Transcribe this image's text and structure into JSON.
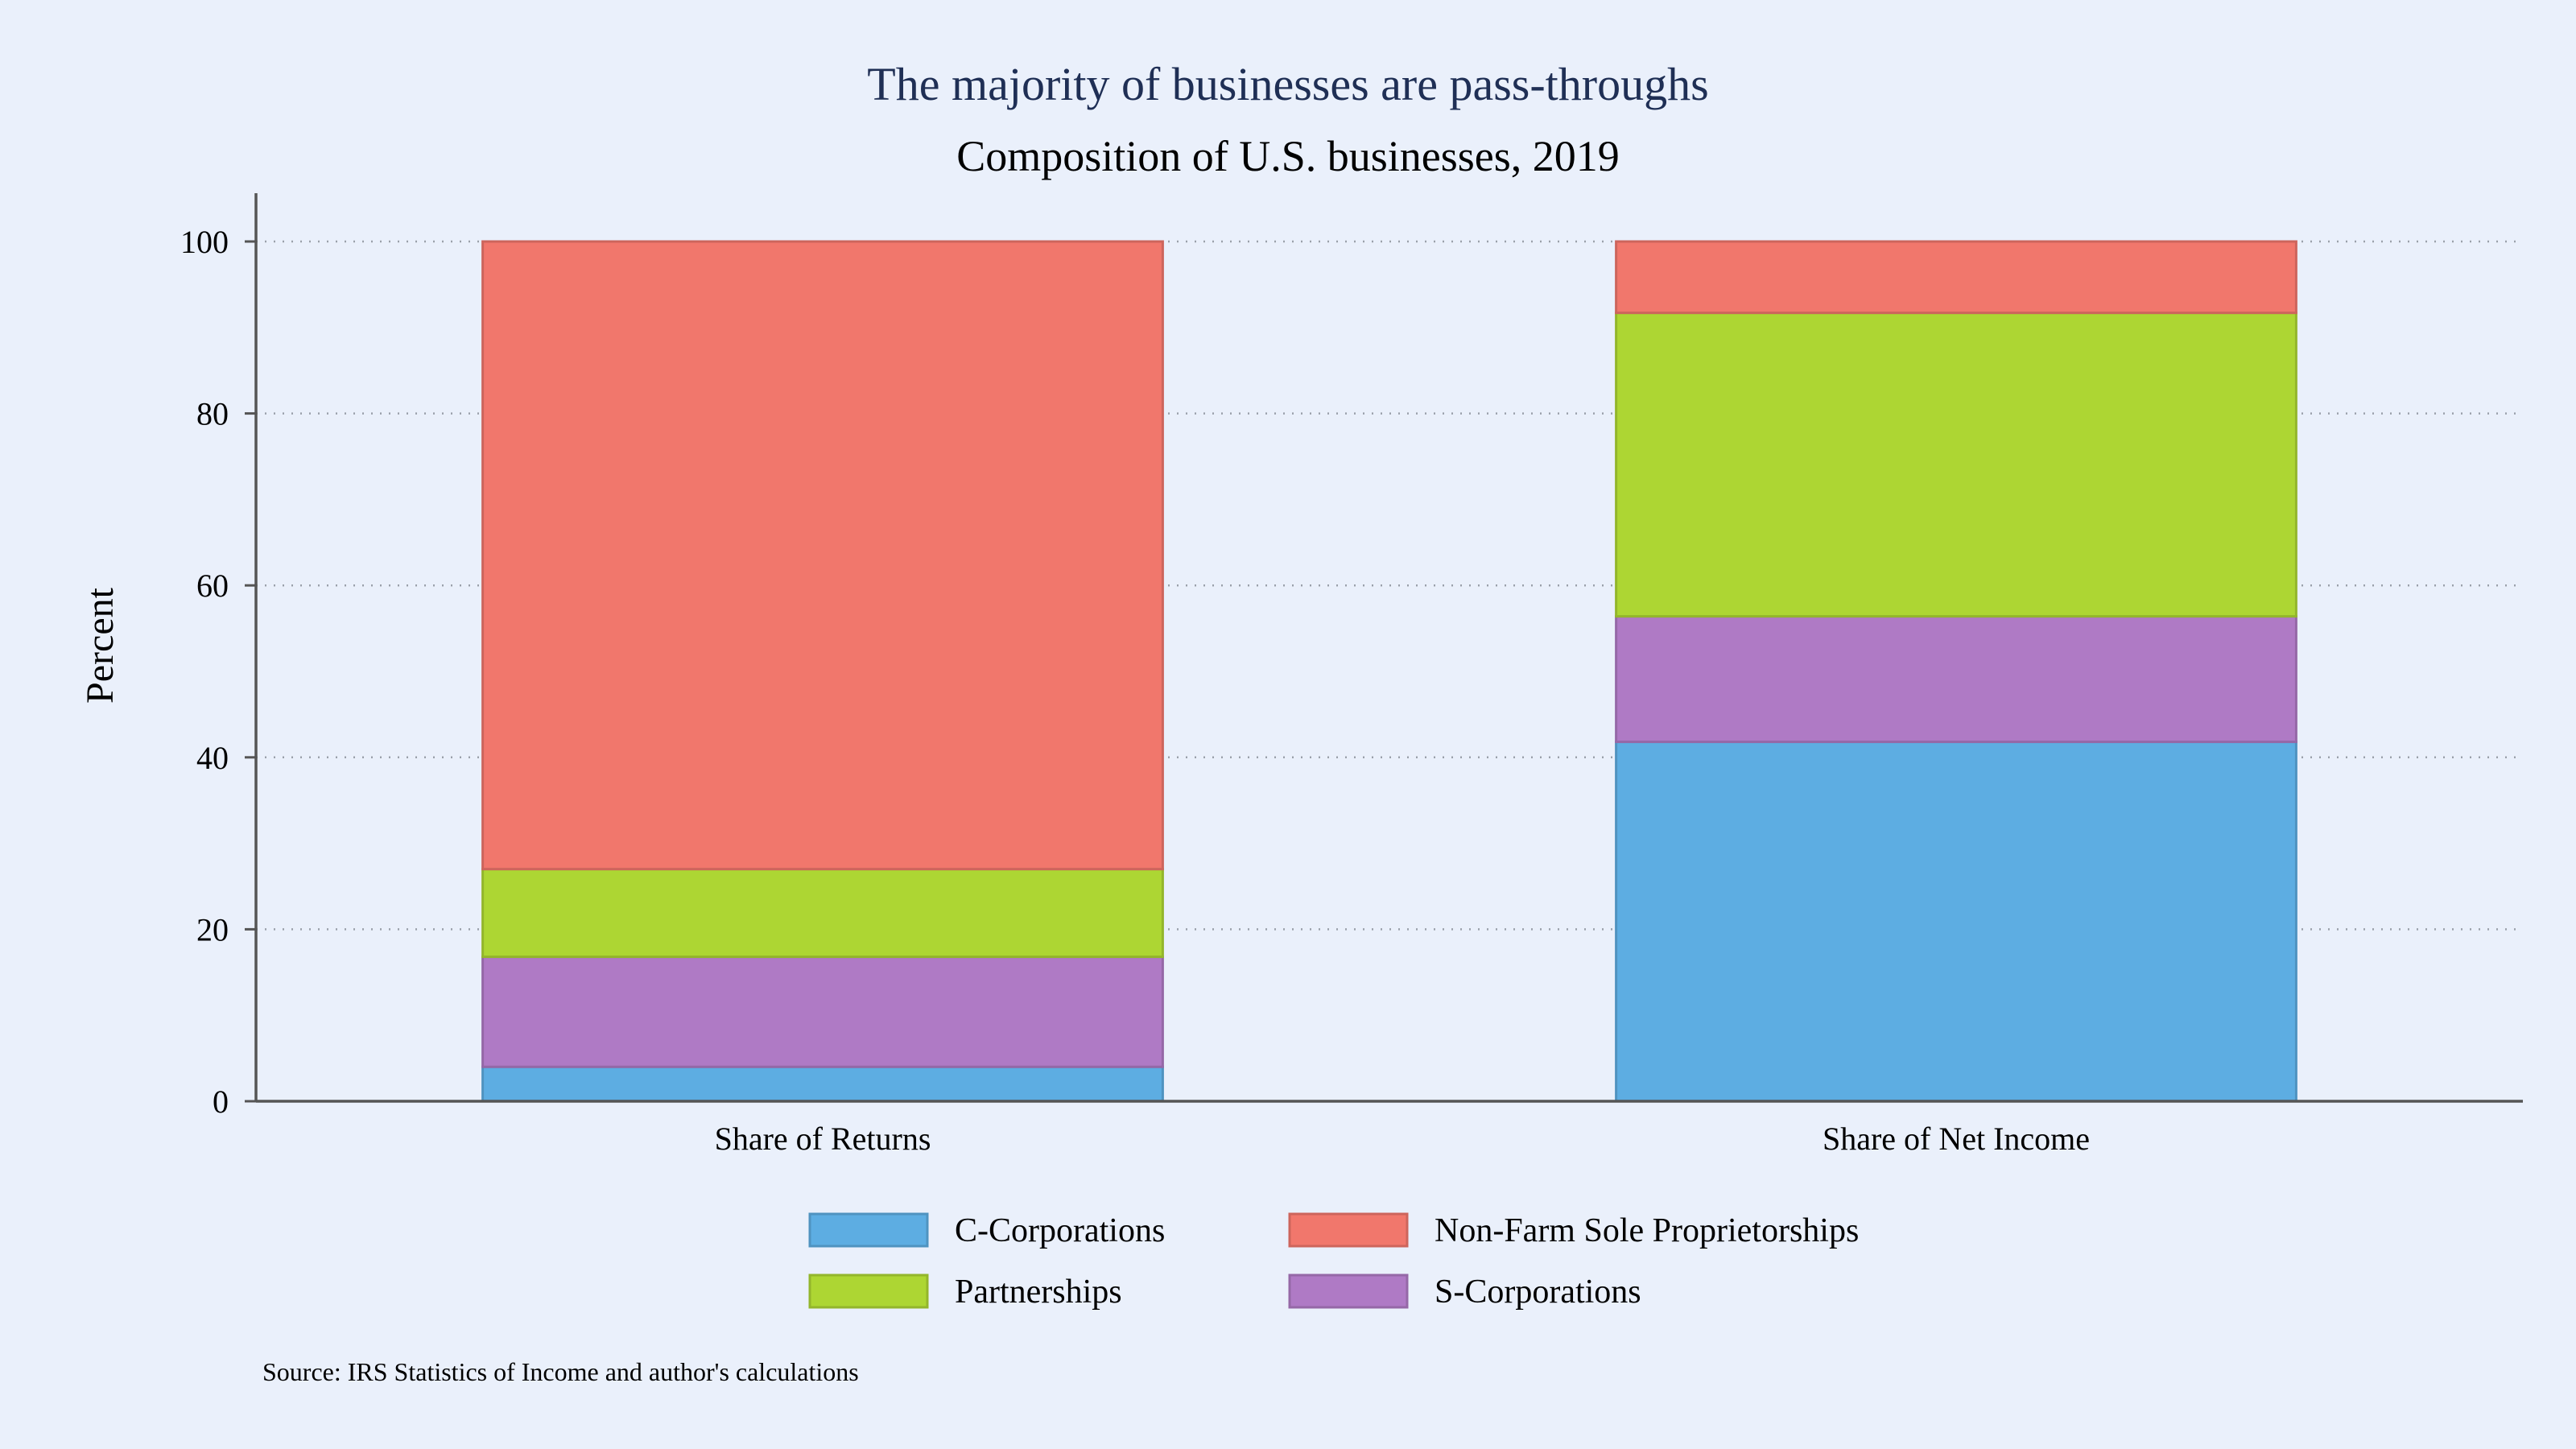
{
  "chart_data": {
    "type": "bar",
    "stacked": true,
    "title": "The majority of businesses are pass-throughs",
    "subtitle": "Composition of U.S. businesses, 2019",
    "ylabel": "Percent",
    "xlabel": "",
    "ylim": [
      0,
      100
    ],
    "yticks": [
      0,
      20,
      40,
      60,
      80,
      100
    ],
    "grid": "horizontal dotted",
    "legend_position": "bottom",
    "categories": [
      "Share of Returns",
      "Share of Net Income"
    ],
    "series": [
      {
        "name": "C-Corporations",
        "values": [
          4.0,
          41.8
        ],
        "color": "#5dade2"
      },
      {
        "name": "S-Corporations",
        "values": [
          12.8,
          14.6
        ],
        "color": "#af7ac5"
      },
      {
        "name": "Partnerships",
        "values": [
          10.2,
          35.3
        ],
        "color": "#add633"
      },
      {
        "name": "Non-Farm Sole Proprietorships",
        "values": [
          73.0,
          8.3
        ],
        "color": "#f1776c"
      }
    ],
    "legend_order": [
      "C-Corporations",
      "Non-Farm Sole Proprietorships",
      "Partnerships",
      "S-Corporations"
    ],
    "source": "Source: IRS Statistics of Income and author's calculations"
  },
  "colors": {
    "background": "#eaf0fb",
    "title": "#1f2f55",
    "axis": "#555555",
    "grid": "#9aa0aa"
  }
}
